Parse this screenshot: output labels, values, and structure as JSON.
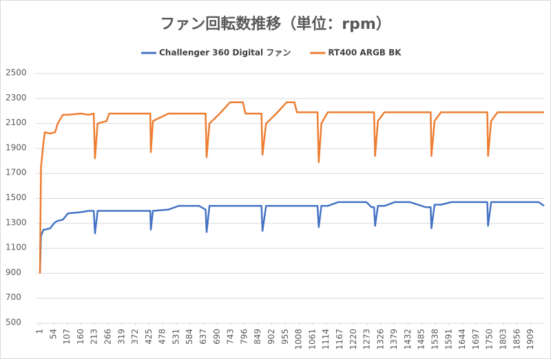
{
  "chart_data": {
    "type": "line",
    "title": "ファン回転数推移（単位：rpm）",
    "x": [
      1,
      5,
      15,
      20,
      40,
      60,
      70,
      90,
      110,
      160,
      190,
      210,
      215,
      225,
      260,
      270,
      430,
      432,
      440,
      500,
      540,
      620,
      645,
      649,
      660,
      700,
      740,
      790,
      800,
      862,
      866,
      880,
      920,
      960,
      990,
      1000,
      1080,
      1085,
      1095,
      1120,
      1160,
      1270,
      1290,
      1300,
      1304,
      1315,
      1340,
      1380,
      1440,
      1500,
      1520,
      1523,
      1535,
      1560,
      1600,
      1700,
      1740,
      1743,
      1755,
      1780,
      1940,
      1961
    ],
    "series": [
      {
        "name": "Challenger 360 Digital ファン",
        "color": "#4472c4",
        "values": [
          900,
          1200,
          1250,
          1250,
          1260,
          1310,
          1320,
          1330,
          1380,
          1390,
          1400,
          1400,
          1220,
          1400,
          1400,
          1400,
          1400,
          1250,
          1400,
          1410,
          1440,
          1440,
          1410,
          1230,
          1440,
          1440,
          1440,
          1440,
          1440,
          1440,
          1240,
          1440,
          1440,
          1440,
          1440,
          1440,
          1440,
          1270,
          1440,
          1440,
          1470,
          1470,
          1430,
          1430,
          1280,
          1440,
          1440,
          1470,
          1470,
          1430,
          1430,
          1260,
          1450,
          1450,
          1470,
          1470,
          1470,
          1280,
          1470,
          1470,
          1470,
          1440
        ]
      },
      {
        "name": "RT400 ARGB BK",
        "color": "#ed7d31",
        "values": [
          900,
          1750,
          1950,
          2030,
          2020,
          2030,
          2100,
          2170,
          2170,
          2180,
          2170,
          2180,
          1820,
          2100,
          2120,
          2180,
          2180,
          1870,
          2120,
          2180,
          2180,
          2180,
          2180,
          1830,
          2100,
          2180,
          2270,
          2270,
          2180,
          2180,
          1850,
          2100,
          2180,
          2270,
          2270,
          2190,
          2190,
          1790,
          2100,
          2190,
          2190,
          2190,
          2190,
          2190,
          1840,
          2120,
          2190,
          2190,
          2190,
          2190,
          2190,
          1840,
          2120,
          2190,
          2190,
          2190,
          2190,
          1840,
          2120,
          2190,
          2190,
          2190
        ]
      }
    ],
    "xlim": [
      1,
      1961
    ],
    "xticks": [
      1,
      54,
      107,
      160,
      213,
      266,
      319,
      372,
      425,
      478,
      531,
      584,
      637,
      690,
      743,
      796,
      849,
      902,
      955,
      1008,
      1061,
      1114,
      1167,
      1220,
      1273,
      1326,
      1379,
      1432,
      1485,
      1538,
      1591,
      1644,
      1697,
      1750,
      1803,
      1856,
      1909
    ],
    "ylim": [
      500,
      2500
    ],
    "yticks": [
      500,
      700,
      900,
      1100,
      1300,
      1500,
      1700,
      1900,
      2100,
      2300,
      2500
    ],
    "grid": true,
    "legend": "top"
  }
}
